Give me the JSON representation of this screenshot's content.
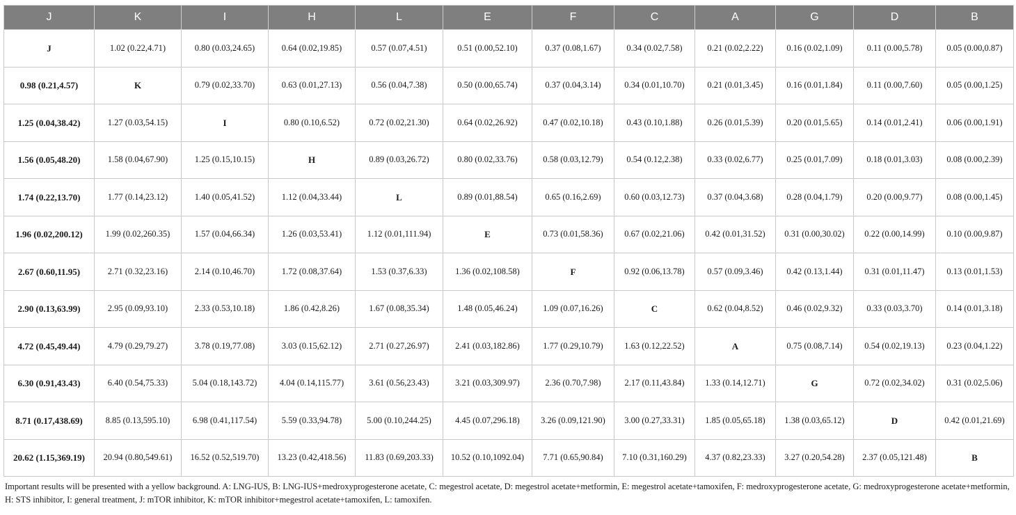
{
  "headers": [
    "J",
    "K",
    "I",
    "H",
    "L",
    "E",
    "F",
    "C",
    "A",
    "G",
    "D",
    "B"
  ],
  "rows": [
    [
      "J",
      "1.02 (0.22,4.71)",
      "0.80 (0.03,24.65)",
      "0.64 (0.02,19.85)",
      "0.57 (0.07,4.51)",
      "0.51 (0.00,52.10)",
      "0.37 (0.08,1.67)",
      "0.34 (0.02,7.58)",
      "0.21 (0.02,2.22)",
      "0.16 (0.02,1.09)",
      "0.11 (0.00,5.78)",
      "0.05 (0.00,0.87)"
    ],
    [
      "0.98 (0.21,4.57)",
      "K",
      "0.79 (0.02,33.70)",
      "0.63 (0.01,27.13)",
      "0.56 (0.04,7.38)",
      "0.50 (0.00,65.74)",
      "0.37 (0.04,3.14)",
      "0.34 (0.01,10.70)",
      "0.21 (0.01,3.45)",
      "0.16 (0.01,1.84)",
      "0.11 (0.00,7.60)",
      "0.05 (0.00,1.25)"
    ],
    [
      "1.25 (0.04,38.42)",
      "1.27 (0.03,54.15)",
      "I",
      "0.80 (0.10,6.52)",
      "0.72 (0.02,21.30)",
      "0.64 (0.02,26.92)",
      "0.47 (0.02,10.18)",
      "0.43 (0.10,1.88)",
      "0.26 (0.01,5.39)",
      "0.20 (0.01,5.65)",
      "0.14 (0.01,2.41)",
      "0.06 (0.00,1.91)"
    ],
    [
      "1.56 (0.05,48.20)",
      "1.58 (0.04,67.90)",
      "1.25 (0.15,10.15)",
      "H",
      "0.89 (0.03,26.72)",
      "0.80 (0.02,33.76)",
      "0.58 (0.03,12.79)",
      "0.54 (0.12,2.38)",
      "0.33 (0.02,6.77)",
      "0.25 (0.01,7.09)",
      "0.18 (0.01,3.03)",
      "0.08 (0.00,2.39)"
    ],
    [
      "1.74 (0.22,13.70)",
      "1.77 (0.14,23.12)",
      "1.40 (0.05,41.52)",
      "1.12 (0.04,33.44)",
      "L",
      "0.89 (0.01,88.54)",
      "0.65 (0.16,2.69)",
      "0.60 (0.03,12.73)",
      "0.37 (0.04,3.68)",
      "0.28 (0.04,1.79)",
      "0.20 (0.00,9.77)",
      "0.08 (0.00,1.45)"
    ],
    [
      "1.96 (0.02,200.12)",
      "1.99 (0.02,260.35)",
      "1.57 (0.04,66.34)",
      "1.26 (0.03,53.41)",
      "1.12 (0.01,111.94)",
      "E",
      "0.73 (0.01,58.36)",
      "0.67 (0.02,21.06)",
      "0.42 (0.01,31.52)",
      "0.31 (0.00,30.02)",
      "0.22 (0.00,14.99)",
      "0.10 (0.00,9.87)"
    ],
    [
      "2.67 (0.60,11.95)",
      "2.71 (0.32,23.16)",
      "2.14 (0.10,46.70)",
      "1.72 (0.08,37.64)",
      "1.53 (0.37,6.33)",
      "1.36 (0.02,108.58)",
      "F",
      "0.92 (0.06,13.78)",
      "0.57 (0.09,3.46)",
      "0.42 (0.13,1.44)",
      "0.31 (0.01,11.47)",
      "0.13 (0.01,1.53)"
    ],
    [
      "2.90 (0.13,63.99)",
      "2.95 (0.09,93.10)",
      "2.33 (0.53,10.18)",
      "1.86 (0.42,8.26)",
      "1.67 (0.08,35.34)",
      "1.48 (0.05,46.24)",
      "1.09 (0.07,16.26)",
      "C",
      "0.62 (0.04,8.52)",
      "0.46 (0.02,9.32)",
      "0.33 (0.03,3.70)",
      "0.14 (0.01,3.18)"
    ],
    [
      "4.72 (0.45,49.44)",
      "4.79 (0.29,79.27)",
      "3.78 (0.19,77.08)",
      "3.03 (0.15,62.12)",
      "2.71 (0.27,26.97)",
      "2.41 (0.03,182.86)",
      "1.77 (0.29,10.79)",
      "1.63 (0.12,22.52)",
      "A",
      "0.75 (0.08,7.14)",
      "0.54 (0.02,19.13)",
      "0.23 (0.04,1.22)"
    ],
    [
      "6.30 (0.91,43.43)",
      "6.40 (0.54,75.33)",
      "5.04 (0.18,143.72)",
      "4.04 (0.14,115.77)",
      "3.61 (0.56,23.43)",
      "3.21 (0.03,309.97)",
      "2.36 (0.70,7.98)",
      "2.17 (0.11,43.84)",
      "1.33 (0.14,12.71)",
      "G",
      "0.72 (0.02,34.02)",
      "0.31 (0.02,5.06)"
    ],
    [
      "8.71 (0.17,438.69)",
      "8.85 (0.13,595.10)",
      "6.98 (0.41,117.54)",
      "5.59 (0.33,94.78)",
      "5.00 (0.10,244.25)",
      "4.45 (0.07,296.18)",
      "3.26 (0.09,121.90)",
      "3.00 (0.27,33.31)",
      "1.85 (0.05,65.18)",
      "1.38 (0.03,65.12)",
      "D",
      "0.42 (0.01,21.69)"
    ],
    [
      "20.62 (1.15,369.19)",
      "20.94 (0.80,549.61)",
      "16.52 (0.52,519.70)",
      "13.23 (0.42,418.56)",
      "11.83 (0.69,203.33)",
      "10.52 (0.10,1092.04)",
      "7.71 (0.65,90.84)",
      "7.10 (0.31,160.29)",
      "4.37 (0.82,23.33)",
      "3.27 (0.20,54.28)",
      "2.37 (0.05,121.48)",
      "B"
    ]
  ],
  "footnote": "Important results will be presented with a yellow background. A: LNG-IUS, B: LNG-IUS+medroxyprogesterone acetate, C: megestrol acetate, D: megestrol acetate+metformin, E: megestrol acetate+tamoxifen, F: medroxyprogesterone acetate, G: medroxyprogesterone acetate+metformin, H: STS inhibitor, I: general treatment, J: mTOR inhibitor, K: mTOR inhibitor+megestrol acetate+tamoxifen, L: tamoxifen."
}
